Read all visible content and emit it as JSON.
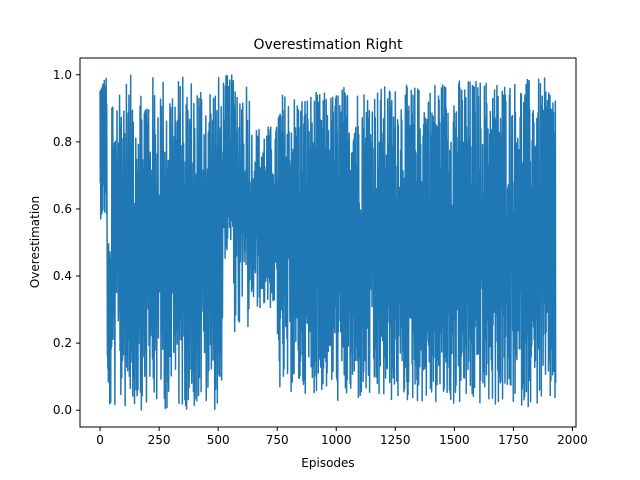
{
  "chart_data": {
    "type": "line",
    "title": "Overestimation Right",
    "xlabel": "Episodes",
    "ylabel": "Overestimation",
    "xlim": [
      -85,
      2015
    ],
    "ylim": [
      -0.05,
      1.05
    ],
    "grid": false,
    "x_ticks": [
      0,
      250,
      500,
      750,
      1000,
      1250,
      1500,
      1750,
      2000
    ],
    "x_tick_labels": [
      "0",
      "250",
      "500",
      "750",
      "1000",
      "1250",
      "1500",
      "1750",
      "2000"
    ],
    "y_ticks": [
      0.0,
      0.2,
      0.4,
      0.6,
      0.8,
      1.0
    ],
    "y_tick_labels": [
      "0.0",
      "0.2",
      "0.4",
      "0.6",
      "0.8",
      "1.0"
    ],
    "series": [
      {
        "name": "",
        "color": "#1f77b4",
        "segments": [
          {
            "x_start": 0,
            "x_end": 30,
            "low": 0.57,
            "high": 1.0,
            "points": 30
          },
          {
            "x_start": 30,
            "x_end": 50,
            "low": 0.0,
            "high": 0.5,
            "points": 20
          },
          {
            "x_start": 50,
            "x_end": 520,
            "low": 0.0,
            "high": 1.0,
            "points": 260
          },
          {
            "x_start": 520,
            "x_end": 560,
            "low": 0.45,
            "high": 1.0,
            "points": 30
          },
          {
            "x_start": 560,
            "x_end": 640,
            "low": 0.23,
            "high": 1.0,
            "points": 40
          },
          {
            "x_start": 640,
            "x_end": 750,
            "low": 0.3,
            "high": 0.85,
            "points": 80
          },
          {
            "x_start": 750,
            "x_end": 1000,
            "low": 0.05,
            "high": 0.95,
            "points": 200
          },
          {
            "x_start": 1000,
            "x_end": 1400,
            "low": 0.02,
            "high": 0.97,
            "points": 320
          },
          {
            "x_start": 1400,
            "x_end": 1930,
            "low": 0.01,
            "high": 0.99,
            "points": 420
          }
        ]
      }
    ]
  }
}
